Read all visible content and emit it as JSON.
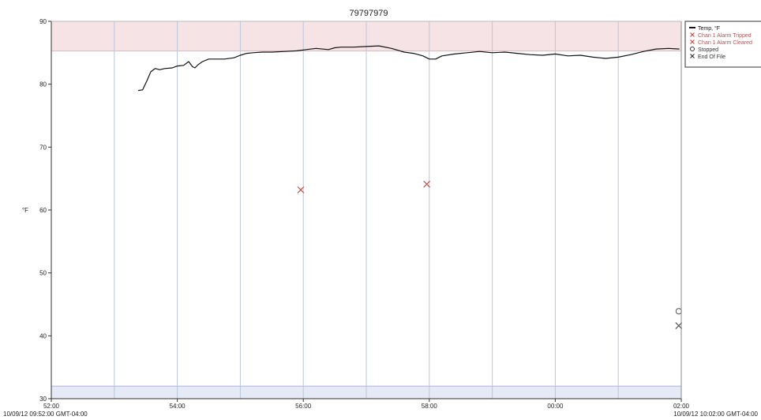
{
  "chart_data": {
    "type": "line",
    "title": "79797979",
    "ylabel": "°F",
    "xlabel": "",
    "ylim": [
      30,
      90
    ],
    "yticks": [
      30,
      40,
      50,
      60,
      70,
      80,
      90
    ],
    "xlim_minutes": [
      0,
      10
    ],
    "xticks": [
      {
        "at": 0,
        "label": "52:00"
      },
      {
        "at": 2,
        "label": "54:00"
      },
      {
        "at": 4,
        "label": "56:00"
      },
      {
        "at": 6,
        "label": "58:00"
      },
      {
        "at": 8,
        "label": "00:00"
      },
      {
        "at": 10,
        "label": "02:00"
      }
    ],
    "x_start_label": "10/09/12 09:52:00 GMT-04:00",
    "x_end_label": "10/09/12 10:02:00 GMT-04:00",
    "alarm_bands": [
      {
        "from": 85.3,
        "to": 90,
        "color": "#f6e3e6"
      },
      {
        "from": 30,
        "to": 32,
        "color": "#e6e9f6"
      }
    ],
    "alarm_lines": [
      {
        "value": 85.3,
        "color": "#dcb9bf"
      },
      {
        "value": 32,
        "color": "#a9b3d9"
      }
    ],
    "series": [
      {
        "name": "Temp, °F",
        "color": "#111111",
        "x": [
          1.38,
          1.45,
          1.52,
          1.58,
          1.65,
          1.72,
          1.8,
          1.92,
          2.0,
          2.1,
          2.18,
          2.24,
          2.28,
          2.33,
          2.4,
          2.5,
          2.62,
          2.75,
          2.9,
          3.0,
          3.1,
          3.2,
          3.35,
          3.5,
          3.7,
          3.9,
          4.05,
          4.2,
          4.4,
          4.5,
          4.6,
          4.8,
          5.0,
          5.2,
          5.4,
          5.6,
          5.75,
          5.9,
          6.0,
          6.1,
          6.2,
          6.4,
          6.6,
          6.8,
          7.0,
          7.2,
          7.4,
          7.6,
          7.8,
          8.0,
          8.2,
          8.4,
          8.6,
          8.8,
          9.0,
          9.2,
          9.4,
          9.6,
          9.8,
          9.97
        ],
        "values": [
          79.0,
          79.1,
          80.6,
          82.0,
          82.5,
          82.3,
          82.5,
          82.6,
          82.9,
          83.0,
          83.6,
          82.8,
          82.6,
          83.1,
          83.6,
          84.0,
          84.0,
          84.0,
          84.2,
          84.6,
          84.9,
          85.0,
          85.1,
          85.1,
          85.2,
          85.3,
          85.5,
          85.7,
          85.5,
          85.8,
          85.9,
          85.9,
          86.0,
          86.1,
          85.7,
          85.1,
          84.9,
          84.5,
          84.0,
          84.0,
          84.5,
          84.8,
          85.0,
          85.2,
          85.0,
          85.1,
          84.9,
          84.7,
          84.6,
          84.8,
          84.5,
          84.6,
          84.3,
          84.1,
          84.3,
          84.7,
          85.2,
          85.6,
          85.7,
          85.6
        ]
      }
    ],
    "events": [
      {
        "type": "alarm-tripped",
        "x": 3.96,
        "y": 63.2,
        "color": "#c0504d"
      },
      {
        "type": "alarm-cleared",
        "x": 5.96,
        "y": 64.1,
        "color": "#c0504d"
      },
      {
        "type": "stopped",
        "x": 9.96,
        "y": 43.9,
        "color": "#555555"
      },
      {
        "type": "end-of-file",
        "x": 9.96,
        "y": 41.6,
        "color": "#555555"
      }
    ],
    "legend": {
      "position": "top-right",
      "items": [
        {
          "label": "Temp, °F",
          "marker": "line",
          "color": "#111111"
        },
        {
          "label": "Chan 1 Alarm Tripped",
          "marker": "x",
          "color": "#c0504d"
        },
        {
          "label": "Chan 1 Alarm Cleared",
          "marker": "x",
          "color": "#c0504d"
        },
        {
          "label": "Stopped",
          "marker": "circle",
          "color": "#333333"
        },
        {
          "label": "End Of File",
          "marker": "x",
          "color": "#333333"
        }
      ]
    },
    "grid": {
      "vertical": true,
      "horizontal": false,
      "color": "#b9c7d8"
    }
  }
}
